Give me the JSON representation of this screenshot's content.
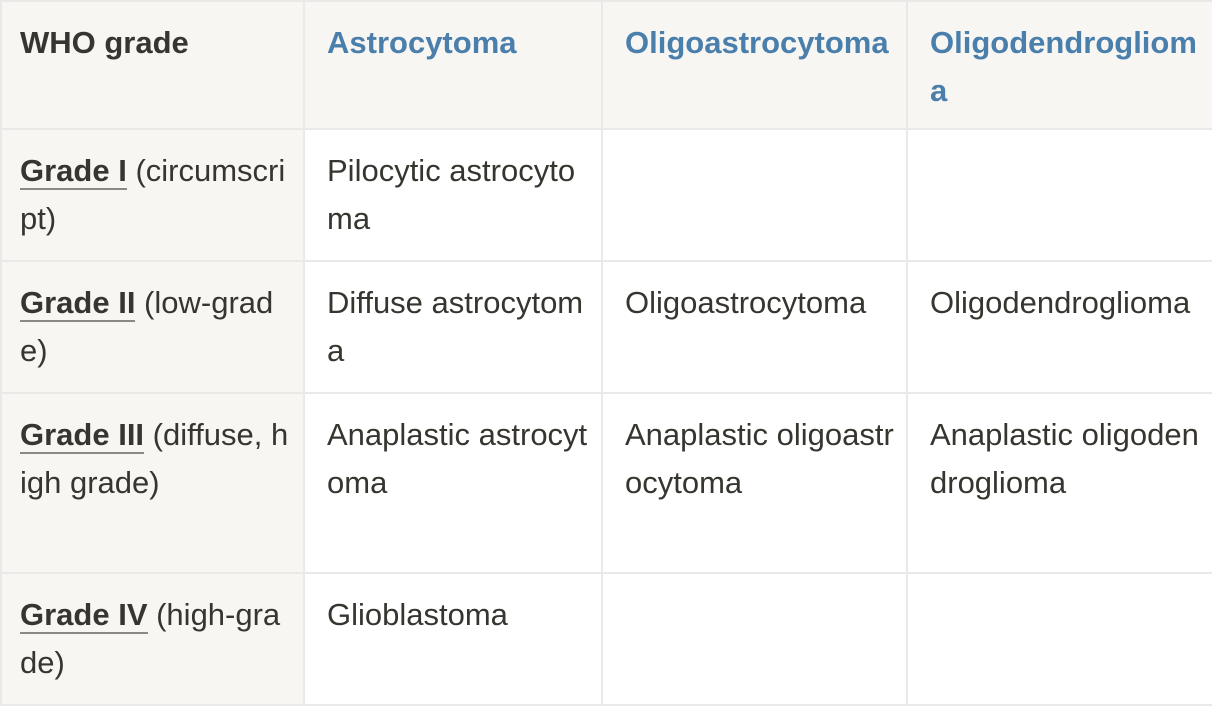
{
  "table": {
    "header": {
      "first": "WHO grade",
      "columns": [
        "Astrocytoma",
        "Oligoastrocytoma",
        "Oligodendroglioma"
      ]
    },
    "rows": [
      {
        "grade_link": "Grade I",
        "grade_note": " (circumscript)",
        "cells": [
          "Pilocytic astrocytoma",
          "",
          ""
        ]
      },
      {
        "grade_link": "Grade II",
        "grade_note": " (low-grade)",
        "cells": [
          "Diffuse astrocytoma",
          "Oligoastrocytoma",
          "Oligodendroglioma"
        ]
      },
      {
        "grade_link": "Grade III",
        "grade_note": " (diffuse, high grade)",
        "cells": [
          "Anaplastic astrocytoma",
          "Anaplastic oligoastrocytoma",
          "Anaplastic oligodendroglioma"
        ]
      },
      {
        "grade_link": "Grade IV",
        "grade_note": " (high-grade)",
        "cells": [
          "Glioblastoma",
          "",
          ""
        ]
      }
    ]
  },
  "colors": {
    "header_bg": "#f7f6f3",
    "column_title": "#4a7fac",
    "text": "#37352f",
    "border": "#e9e9e7"
  }
}
